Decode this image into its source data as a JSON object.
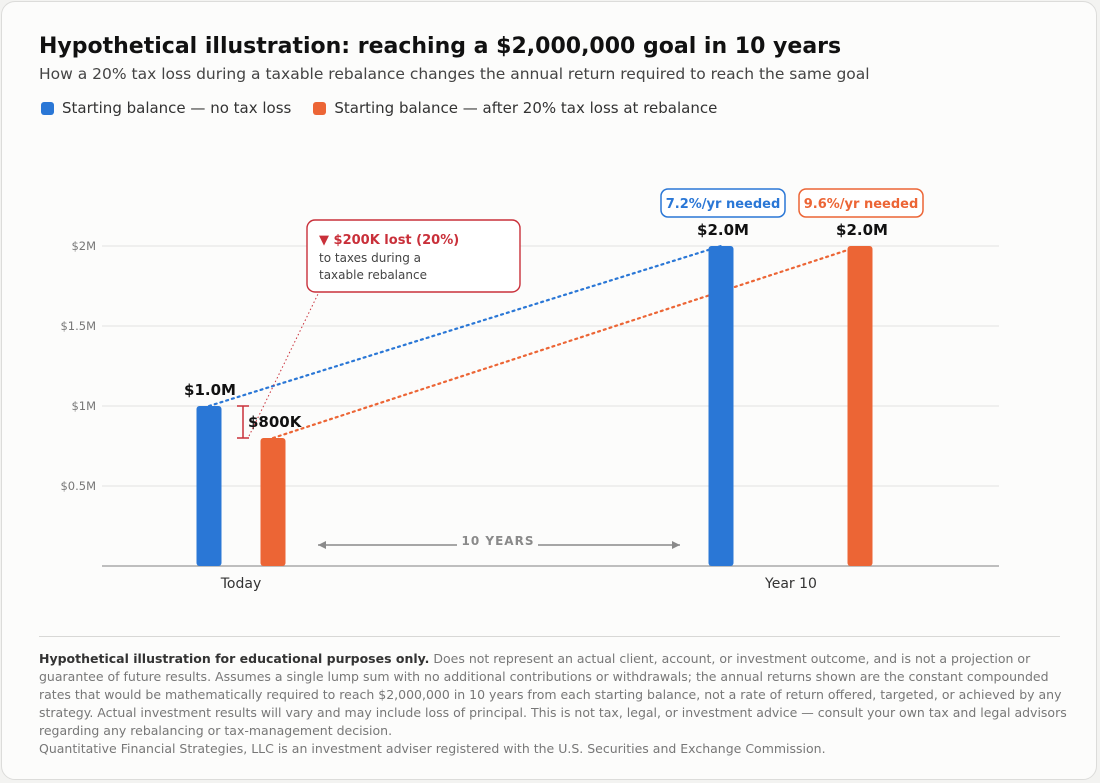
{
  "title": "Hypothetical illustration: reaching a $2,000,000 goal in 10 years",
  "subtitle": "How a 20% tax loss during a taxable rebalance changes the annual return required to reach the same goal",
  "colors": {
    "blue": "#2a77d6",
    "orange": "#ec6535",
    "red": "#c9303a"
  },
  "legend": [
    {
      "label": "Starting balance — no tax loss",
      "color": "#2a77d6"
    },
    {
      "label": "Starting balance — after 20% tax loss at rebalance",
      "color": "#ec6535"
    }
  ],
  "chart_data": {
    "type": "bar",
    "categories": [
      "Today",
      "Year 10"
    ],
    "series": [
      {
        "name": "Starting balance — no tax loss",
        "values": [
          1000000,
          2000000
        ],
        "labels": [
          "$1.0M",
          "$2.0M"
        ],
        "color": "#2a77d6"
      },
      {
        "name": "Starting balance — after 20% tax loss at rebalance",
        "values": [
          800000,
          2000000
        ],
        "labels": [
          "$800K",
          "$2.0M"
        ],
        "color": "#ec6535"
      }
    ],
    "y_ticks": [
      {
        "value": 500000,
        "label": "$0.5M"
      },
      {
        "value": 1000000,
        "label": "$1M"
      },
      {
        "value": 1500000,
        "label": "$1.5M"
      },
      {
        "value": 2000000,
        "label": "$2M"
      }
    ],
    "ylim": [
      0,
      2000000
    ],
    "grid": true,
    "rates": [
      "7.2%/yr needed",
      "9.6%/yr needed"
    ],
    "span_label": "10 YEARS",
    "loss_callout": {
      "headline": "▼ $200K lost (20%)",
      "line1": "to taxes during a",
      "line2": "taxable rebalance"
    }
  },
  "footnote": {
    "bold": "Hypothetical illustration for educational purposes only.",
    "body": " Does not represent an actual client, account, or investment outcome, and is not a projection or guarantee of future results. Assumes a single lump sum with no additional contributions or withdrawals; the annual returns shown are the constant compounded rates that would be mathematically required to reach $2,000,000 in 10 years from each starting balance, not a rate of return offered, targeted, or achieved by any strategy. Actual investment results will vary and may include loss of principal. This is not tax, legal, or investment advice — consult your own tax and legal advisors regarding any rebalancing or tax-management decision.",
    "disclosure": "Quantitative Financial Strategies, LLC is an investment adviser registered with the U.S. Securities and Exchange Commission."
  }
}
